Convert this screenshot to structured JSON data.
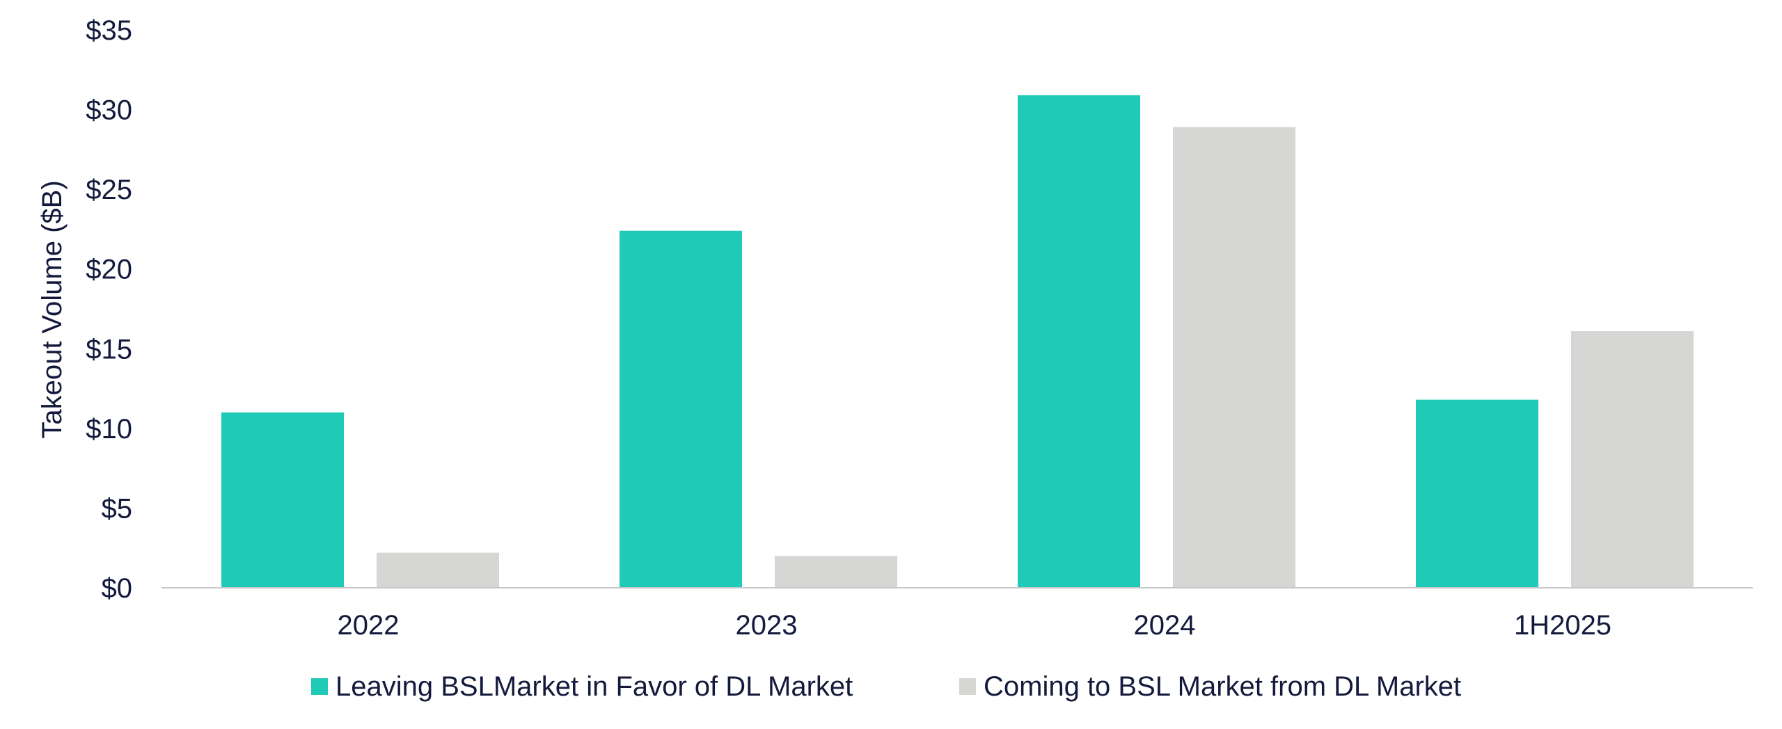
{
  "chart_data": {
    "type": "bar",
    "categories": [
      "2022",
      "2023",
      "2024",
      "1H2025"
    ],
    "series": [
      {
        "name": "Leaving BSLMarket in Favor of DL Market",
        "color": "#1fcab6",
        "values": [
          11.0,
          22.4,
          30.9,
          11.8
        ]
      },
      {
        "name": "Coming to BSL Market from DL Market",
        "color": "#d6d6d4",
        "values": [
          2.2,
          2.0,
          28.9,
          16.1
        ]
      }
    ],
    "ylabel": "Takeout Volume ($B)",
    "xlabel": "",
    "title": "",
    "ylim": [
      0,
      35
    ],
    "yticks": [
      0,
      5,
      10,
      15,
      20,
      25,
      30,
      35
    ],
    "ytick_labels": [
      "$0",
      "$5",
      "$10",
      "$15",
      "$20",
      "$25",
      "$30",
      "$35"
    ],
    "grid": false,
    "legend_position": "bottom-center"
  }
}
